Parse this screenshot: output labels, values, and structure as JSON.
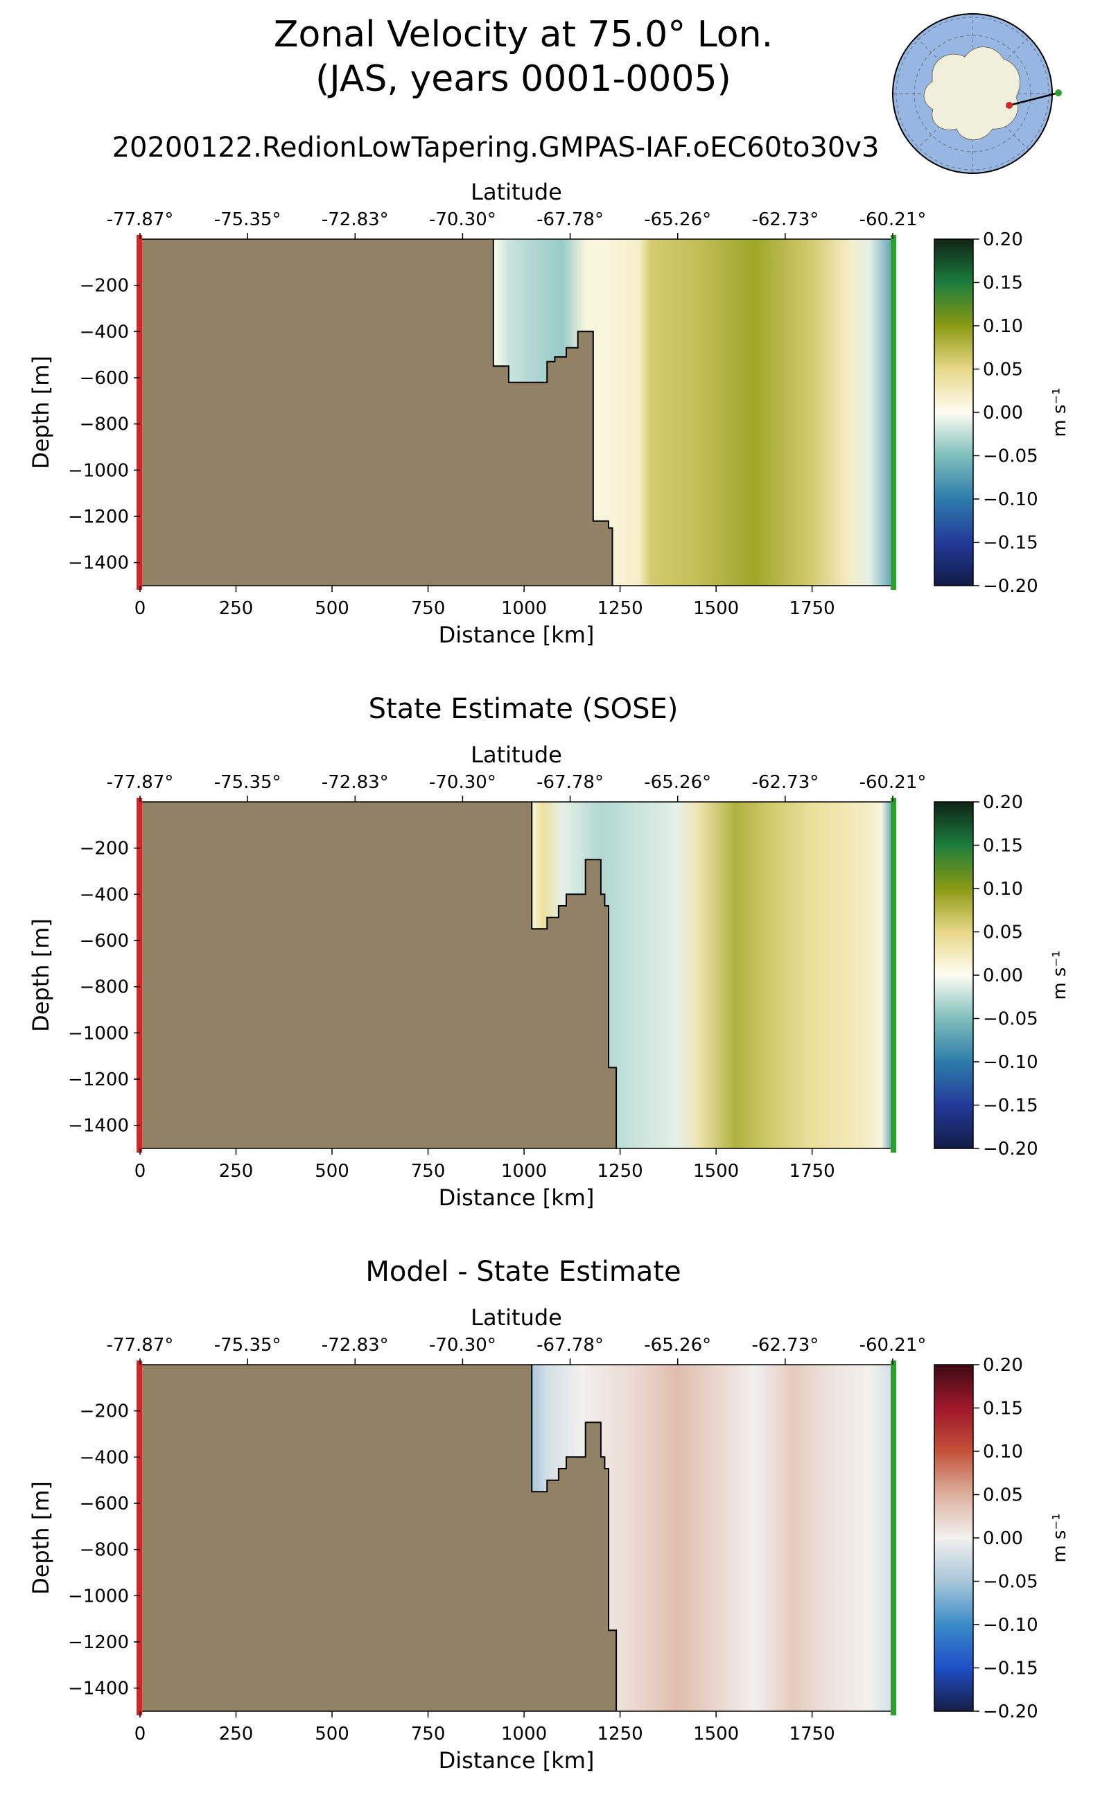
{
  "figure": {
    "title_line1": "Zonal Velocity at 75.0° Lon.",
    "title_line2": "(JAS, years 0001-0005)"
  },
  "chart_data": [
    {
      "type": "heatmap",
      "title": "20200122.RedionLowTapering.GMPAS-IAF.oEC60to30v3",
      "xlabel": "Distance [km]",
      "ylabel": "Depth [m]",
      "top_xlabel": "Latitude",
      "xlim": [
        0,
        1960
      ],
      "ylim": [
        -1500,
        0
      ],
      "x_ticks": [
        "0",
        "250",
        "500",
        "750",
        "1000",
        "1250",
        "1500",
        "1750"
      ],
      "y_ticks": [
        "−200",
        "−400",
        "−600",
        "−800",
        "−1000",
        "−1200",
        "−1400"
      ],
      "top_ticks": [
        "-77.87°",
        "-75.35°",
        "-72.83°",
        "-70.30°",
        "-67.78°",
        "-65.26°",
        "-62.73°",
        "-60.21°"
      ],
      "colorbar": {
        "label": "m s⁻¹",
        "range": [
          -0.2,
          0.2
        ],
        "ticks": [
          "0.20",
          "0.15",
          "0.10",
          "0.05",
          "0.00",
          "−0.05",
          "−0.10",
          "−0.15",
          "−0.20"
        ]
      },
      "land_profile": [
        [
          920,
          0
        ],
        [
          920,
          -550
        ],
        [
          960,
          -550
        ],
        [
          960,
          -620
        ],
        [
          1060,
          -620
        ],
        [
          1060,
          -530
        ],
        [
          1080,
          -530
        ],
        [
          1080,
          -510
        ],
        [
          1110,
          -510
        ],
        [
          1110,
          -470
        ],
        [
          1140,
          -470
        ],
        [
          1140,
          -400
        ],
        [
          1180,
          -400
        ],
        [
          1180,
          -1220
        ],
        [
          1220,
          -1220
        ],
        [
          1220,
          -1250
        ],
        [
          1230,
          -1250
        ],
        [
          1230,
          -1500
        ]
      ],
      "profile": [
        [
          920,
          0.0
        ],
        [
          960,
          -0.02
        ],
        [
          1020,
          -0.03
        ],
        [
          1100,
          -0.04
        ],
        [
          1160,
          0.01
        ],
        [
          1220,
          0.01
        ],
        [
          1300,
          0.02
        ],
        [
          1330,
          0.06
        ],
        [
          1450,
          0.07
        ],
        [
          1600,
          0.09
        ],
        [
          1750,
          0.06
        ],
        [
          1850,
          0.02
        ],
        [
          1900,
          -0.01
        ],
        [
          1960,
          -0.07
        ]
      ]
    },
    {
      "type": "heatmap",
      "title": "State Estimate (SOSE)",
      "xlabel": "Distance [km]",
      "ylabel": "Depth [m]",
      "top_xlabel": "Latitude",
      "xlim": [
        0,
        1960
      ],
      "ylim": [
        -1500,
        0
      ],
      "x_ticks": [
        "0",
        "250",
        "500",
        "750",
        "1000",
        "1250",
        "1500",
        "1750"
      ],
      "y_ticks": [
        "−200",
        "−400",
        "−600",
        "−800",
        "−1000",
        "−1200",
        "−1400"
      ],
      "top_ticks": [
        "-77.87°",
        "-75.35°",
        "-72.83°",
        "-70.30°",
        "-67.78°",
        "-65.26°",
        "-62.73°",
        "-60.21°"
      ],
      "colorbar": {
        "label": "m s⁻¹",
        "range": [
          -0.2,
          0.2
        ],
        "ticks": [
          "0.20",
          "0.15",
          "0.10",
          "0.05",
          "0.00",
          "−0.05",
          "−0.10",
          "−0.15",
          "−0.20"
        ]
      },
      "land_profile": [
        [
          1020,
          0
        ],
        [
          1020,
          -550
        ],
        [
          1060,
          -550
        ],
        [
          1060,
          -500
        ],
        [
          1090,
          -500
        ],
        [
          1090,
          -450
        ],
        [
          1110,
          -450
        ],
        [
          1110,
          -400
        ],
        [
          1160,
          -400
        ],
        [
          1160,
          -250
        ],
        [
          1200,
          -250
        ],
        [
          1200,
          -400
        ],
        [
          1210,
          -400
        ],
        [
          1210,
          -450
        ],
        [
          1220,
          -450
        ],
        [
          1220,
          -1150
        ],
        [
          1240,
          -1150
        ],
        [
          1240,
          -1500
        ]
      ],
      "profile": [
        [
          1020,
          0.01
        ],
        [
          1050,
          0.04
        ],
        [
          1100,
          -0.01
        ],
        [
          1200,
          -0.03
        ],
        [
          1300,
          -0.02
        ],
        [
          1400,
          -0.01
        ],
        [
          1450,
          0.03
        ],
        [
          1550,
          0.08
        ],
        [
          1650,
          0.06
        ],
        [
          1750,
          0.04
        ],
        [
          1900,
          0.02
        ],
        [
          1930,
          0.01
        ],
        [
          1960,
          -0.07
        ]
      ]
    },
    {
      "type": "heatmap",
      "title": "Model - State Estimate",
      "xlabel": "Distance [km]",
      "ylabel": "Depth [m]",
      "top_xlabel": "Latitude",
      "xlim": [
        0,
        1960
      ],
      "ylim": [
        -1500,
        0
      ],
      "x_ticks": [
        "0",
        "250",
        "500",
        "750",
        "1000",
        "1250",
        "1500",
        "1750"
      ],
      "y_ticks": [
        "−200",
        "−400",
        "−600",
        "−800",
        "−1000",
        "−1200",
        "−1400"
      ],
      "top_ticks": [
        "-77.87°",
        "-75.35°",
        "-72.83°",
        "-70.30°",
        "-67.78°",
        "-65.26°",
        "-62.73°",
        "-60.21°"
      ],
      "colorbar": {
        "label": "m s⁻¹",
        "range": [
          -0.2,
          0.2
        ],
        "ticks": [
          "0.20",
          "0.15",
          "0.10",
          "0.05",
          "0.00",
          "−0.05",
          "−0.10",
          "−0.15",
          "−0.20"
        ]
      },
      "land_profile": [
        [
          1020,
          0
        ],
        [
          1020,
          -550
        ],
        [
          1060,
          -550
        ],
        [
          1060,
          -500
        ],
        [
          1090,
          -500
        ],
        [
          1090,
          -450
        ],
        [
          1110,
          -450
        ],
        [
          1110,
          -400
        ],
        [
          1160,
          -400
        ],
        [
          1160,
          -250
        ],
        [
          1200,
          -250
        ],
        [
          1200,
          -400
        ],
        [
          1210,
          -400
        ],
        [
          1210,
          -450
        ],
        [
          1220,
          -450
        ],
        [
          1220,
          -1150
        ],
        [
          1240,
          -1150
        ],
        [
          1240,
          -1500
        ]
      ],
      "profile": [
        [
          1020,
          -0.05
        ],
        [
          1060,
          -0.02
        ],
        [
          1150,
          0.0
        ],
        [
          1300,
          0.02
        ],
        [
          1400,
          0.04
        ],
        [
          1500,
          0.02
        ],
        [
          1600,
          0.0
        ],
        [
          1700,
          0.03
        ],
        [
          1800,
          0.01
        ],
        [
          1900,
          0.0
        ],
        [
          1960,
          -0.02
        ]
      ]
    }
  ],
  "colors": {
    "land": "#918265",
    "start_marker": "#d62728",
    "end_marker": "#2ca02c",
    "globe_ocean": "#97b6e1",
    "globe_land": "#efefdb"
  }
}
